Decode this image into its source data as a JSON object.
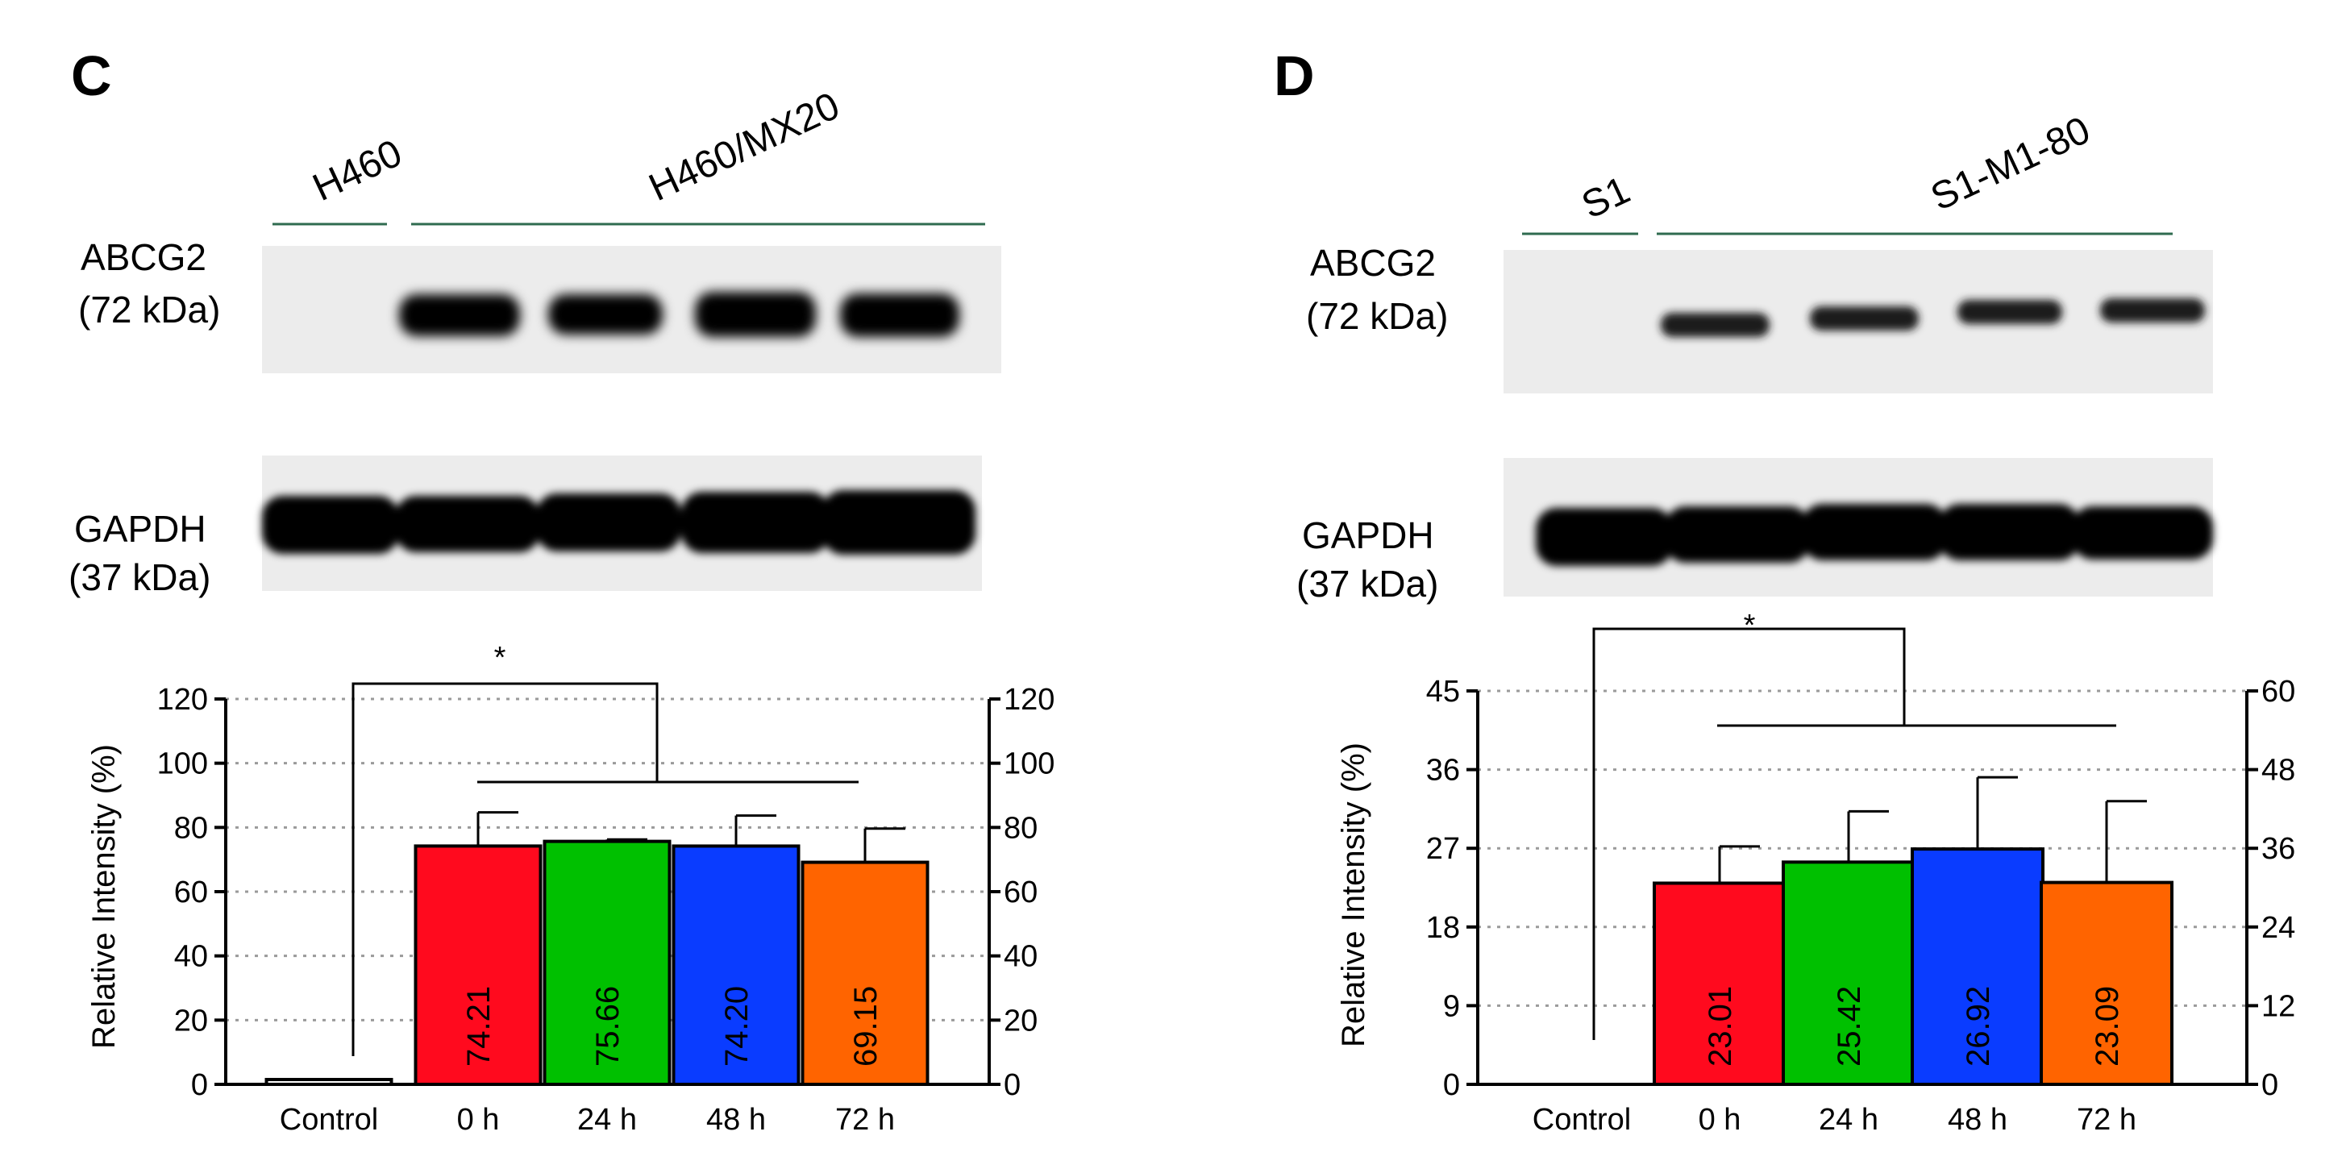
{
  "panels": [
    {
      "letter": "C",
      "blot": {
        "group_labels": [
          "H460",
          "H460/MX20"
        ],
        "protein1": {
          "name": "ABCG2",
          "size": "(72 kDa)"
        },
        "protein2": {
          "name": "GAPDH",
          "size": "(37 kDa)"
        }
      },
      "significance": "*"
    },
    {
      "letter": "D",
      "blot": {
        "group_labels": [
          "S1",
          "S1-M1-80"
        ],
        "protein1": {
          "name": "ABCG2",
          "size": "(72 kDa)"
        },
        "protein2": {
          "name": "GAPDH",
          "size": "(37 kDa)"
        }
      },
      "significance": "*"
    }
  ],
  "chart_data": [
    {
      "type": "bar",
      "panel": "C",
      "categories": [
        "Control",
        "0 h",
        "24 h",
        "48 h",
        "72 h"
      ],
      "values": [
        1.5,
        74.21,
        75.66,
        74.2,
        69.15
      ],
      "errors": [
        0,
        10.5,
        0.6,
        9.5,
        10.5
      ],
      "value_labels": [
        "",
        "74.21",
        "75.66",
        "74.20",
        "69.15"
      ],
      "colors": [
        "#ffffff",
        "#ff0a1e",
        "#00c000",
        "#0a3cff",
        "#ff6400"
      ],
      "ylabel": "Relative Intensity (%)",
      "ylim": [
        0,
        120
      ],
      "yticks": [
        0,
        20,
        40,
        60,
        80,
        100,
        120
      ],
      "y2ticks": [
        0,
        20,
        40,
        60,
        80,
        100,
        120
      ],
      "grid": true
    },
    {
      "type": "bar",
      "panel": "D",
      "categories": [
        "Control",
        "0 h",
        "24 h",
        "48 h",
        "72 h"
      ],
      "values": [
        0,
        23.01,
        25.42,
        26.92,
        23.09
      ],
      "errors": [
        0,
        4.2,
        5.8,
        8.2,
        9.3
      ],
      "value_labels": [
        "",
        "23.01",
        "25.42",
        "26.92",
        "23.09"
      ],
      "colors": [
        "#ffffff",
        "#ff0a1e",
        "#00c000",
        "#0a3cff",
        "#ff6400"
      ],
      "ylabel": "Relative Intensity (%)",
      "ylim": [
        0,
        45
      ],
      "yticks": [
        0,
        9,
        18,
        27,
        36,
        45
      ],
      "y2ticks": [
        0,
        12,
        24,
        36,
        48,
        60
      ],
      "grid": true
    }
  ]
}
